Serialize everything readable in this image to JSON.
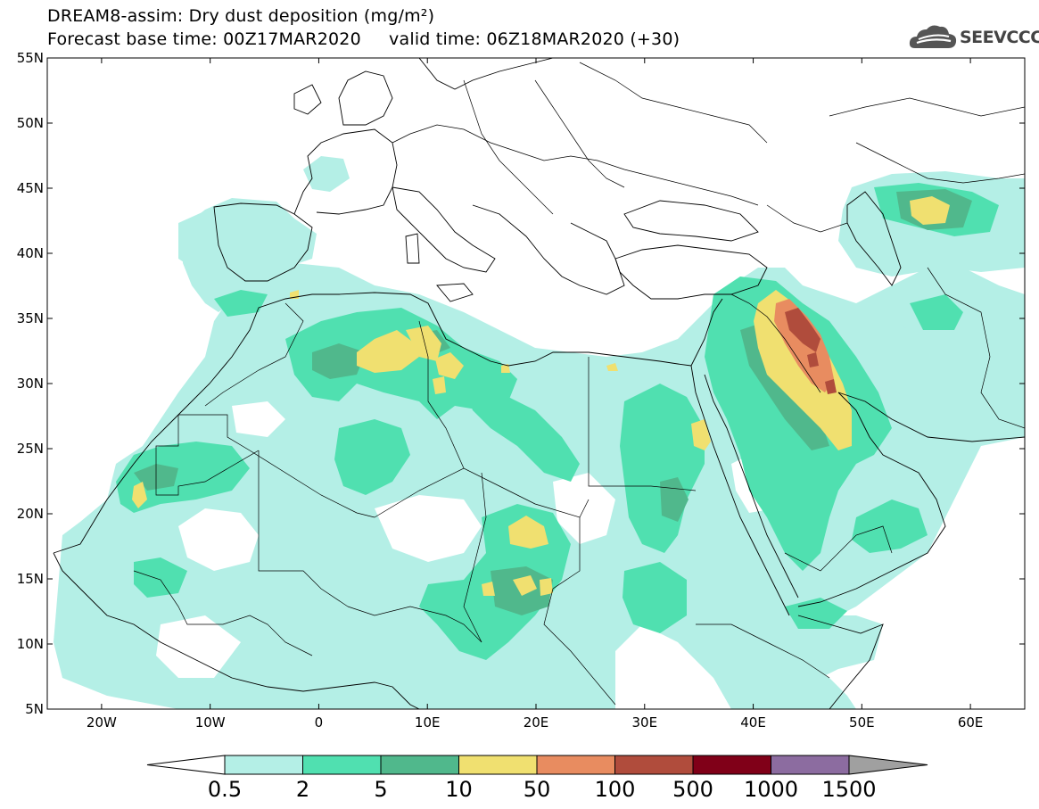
{
  "header": {
    "title_line1": "DREAM8-assim: Dry dust deposition (mg/m²)",
    "title_line2": "Forecast base time: 00Z17MAR2020     valid time: 06Z18MAR2020 (+30)"
  },
  "logo": {
    "text": "SEEVCCC",
    "icon": "cloud-icon"
  },
  "map": {
    "lon_range": [
      -25,
      65
    ],
    "lat_range": [
      5,
      55
    ],
    "lat_ticks": [
      {
        "value": 55,
        "label": "55N"
      },
      {
        "value": 50,
        "label": "50N"
      },
      {
        "value": 45,
        "label": "45N"
      },
      {
        "value": 40,
        "label": "40N"
      },
      {
        "value": 35,
        "label": "35N"
      },
      {
        "value": 30,
        "label": "30N"
      },
      {
        "value": 25,
        "label": "25N"
      },
      {
        "value": 20,
        "label": "20N"
      },
      {
        "value": 15,
        "label": "15N"
      },
      {
        "value": 10,
        "label": "10N"
      },
      {
        "value": 5,
        "label": "5N"
      }
    ],
    "lon_ticks": [
      {
        "value": -20,
        "label": "20W"
      },
      {
        "value": -10,
        "label": "10W"
      },
      {
        "value": 0,
        "label": "0"
      },
      {
        "value": 10,
        "label": "10E"
      },
      {
        "value": 20,
        "label": "20E"
      },
      {
        "value": 30,
        "label": "30E"
      },
      {
        "value": 40,
        "label": "40E"
      },
      {
        "value": 50,
        "label": "50E"
      },
      {
        "value": 60,
        "label": "60E"
      }
    ]
  },
  "colorbar": {
    "labels": [
      "0.5",
      "2",
      "5",
      "10",
      "50",
      "100",
      "500",
      "1000",
      "1500"
    ],
    "colors": [
      "#b4efe6",
      "#50e0b0",
      "#50b88c",
      "#f0e070",
      "#e88c60",
      "#b04c3c",
      "#800018",
      "#8c6ca0"
    ],
    "under_color": "#ffffff",
    "over_color": "#a0a0a0"
  },
  "colors": {
    "level_0_5": "#b4efe6",
    "level_2": "#50e0b0",
    "level_5": "#50b88c",
    "level_10": "#f0e070",
    "level_50": "#e88c60",
    "level_100": "#b04c3c",
    "level_500": "#800018"
  }
}
